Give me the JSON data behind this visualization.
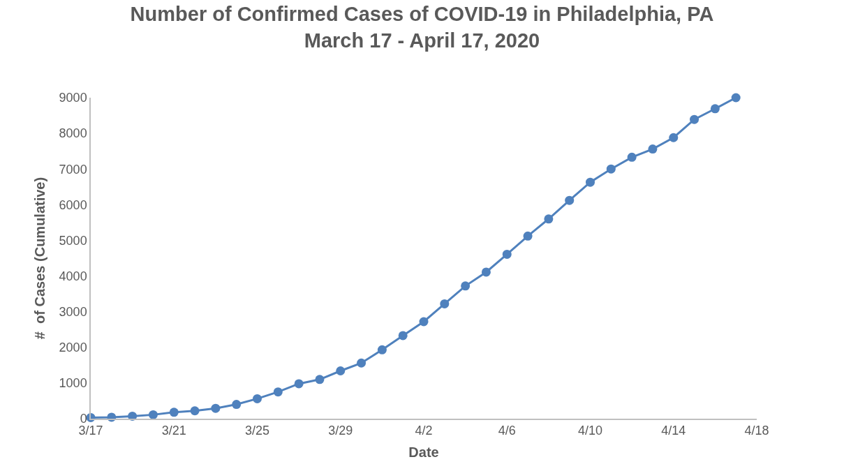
{
  "chart_data": {
    "type": "line",
    "title": "Number of Confirmed Cases of COVID-19 in Philadelphia, PA\nMarch 17 - April 17, 2020",
    "xlabel": "Date",
    "ylabel": "#  of Cases (Cumulative)",
    "x": [
      "2020-03-17",
      "2020-03-18",
      "2020-03-19",
      "2020-03-20",
      "2020-03-21",
      "2020-03-22",
      "2020-03-23",
      "2020-03-24",
      "2020-03-25",
      "2020-03-26",
      "2020-03-27",
      "2020-03-28",
      "2020-03-29",
      "2020-03-30",
      "2020-03-31",
      "2020-04-01",
      "2020-04-02",
      "2020-04-03",
      "2020-04-04",
      "2020-04-05",
      "2020-04-06",
      "2020-04-07",
      "2020-04-08",
      "2020-04-09",
      "2020-04-10",
      "2020-04-11",
      "2020-04-12",
      "2020-04-13",
      "2020-04-14",
      "2020-04-15",
      "2020-04-16",
      "2020-04-17"
    ],
    "series": [
      {
        "color": "#4f81bd",
        "values": [
          30,
          40,
          70,
          110,
          180,
          220,
          290,
          400,
          560,
          750,
          980,
          1100,
          1340,
          1560,
          1930,
          2330,
          2720,
          3220,
          3720,
          4110,
          4610,
          5120,
          5600,
          6120,
          6630,
          7000,
          7330,
          7560,
          7880,
          8390,
          8690,
          9000
        ]
      }
    ],
    "xlim": [
      "2020-03-17",
      "2020-04-18"
    ],
    "xticks": [
      {
        "value": "2020-03-17",
        "label": "3/17"
      },
      {
        "value": "2020-03-21",
        "label": "3/21"
      },
      {
        "value": "2020-03-25",
        "label": "3/25"
      },
      {
        "value": "2020-03-29",
        "label": "3/29"
      },
      {
        "value": "2020-04-02",
        "label": "4/2"
      },
      {
        "value": "2020-04-06",
        "label": "4/6"
      },
      {
        "value": "2020-04-10",
        "label": "4/10"
      },
      {
        "value": "2020-04-14",
        "label": "4/14"
      },
      {
        "value": "2020-04-18",
        "label": "4/18"
      }
    ],
    "ylim": [
      0,
      9000
    ],
    "yticks": [
      0,
      1000,
      2000,
      3000,
      4000,
      5000,
      6000,
      7000,
      8000,
      9000
    ],
    "grid": false,
    "marker": "circle",
    "line_style": "solid"
  }
}
